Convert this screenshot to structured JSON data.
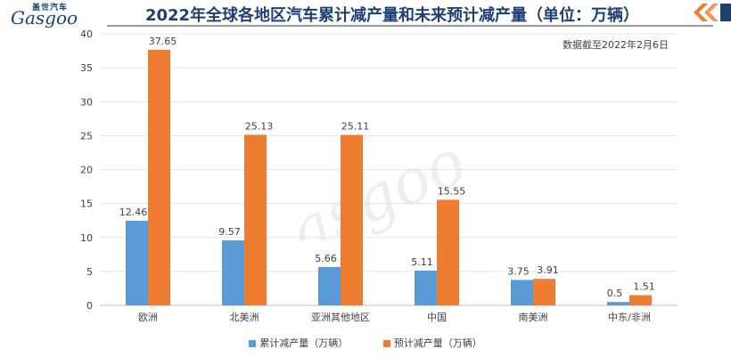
{
  "header": {
    "title": "2022年全球各地区汽车累计减产量和未来预计减产量（单位：万辆）",
    "logo_cn": "盖世汽车",
    "logo_en": "Gasgoo"
  },
  "note": "数据截至2022年2月6日",
  "colors": {
    "cumulative": "#5b9bd5",
    "forecast": "#ed7d31",
    "title": "#1f3f73",
    "accent": "#ed7d31"
  },
  "chart_data": {
    "type": "bar",
    "categories": [
      "欧洲",
      "北美洲",
      "亚洲其他地区",
      "中国",
      "南美洲",
      "中东/非洲"
    ],
    "series": [
      {
        "name": "累计减产量（万辆）",
        "values": [
          12.46,
          9.57,
          5.66,
          5.11,
          3.75,
          0.5
        ]
      },
      {
        "name": "预计减产量（万辆）",
        "values": [
          37.65,
          25.13,
          25.11,
          15.55,
          3.91,
          1.51
        ]
      }
    ],
    "data_labels": [
      [
        "12.46",
        "9.57",
        "5.66",
        "5.11",
        "3.75",
        "0.5"
      ],
      [
        "37.65",
        "25.13",
        "25.11",
        "15.55",
        "3.91",
        "1.51"
      ]
    ],
    "ylim": [
      0,
      40
    ],
    "yticks": [
      0,
      5,
      10,
      15,
      20,
      25,
      30,
      35,
      40
    ],
    "legend_position": "bottom",
    "grid": true
  }
}
